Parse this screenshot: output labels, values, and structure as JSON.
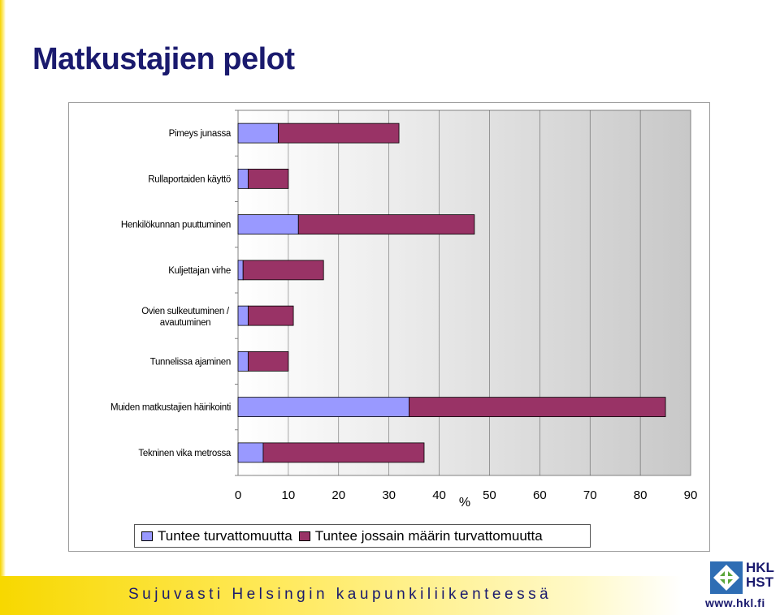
{
  "page": {
    "title": "Matkustajien pelot"
  },
  "footer": {
    "slogan": "Sujuvasti Helsingin kaupunkiliikenteessä"
  },
  "logo": {
    "line1": "HKL",
    "line2": "HST",
    "url": "www.hkl.fi"
  },
  "colors": {
    "series1": "#9999ff",
    "series2": "#993366",
    "title": "#1a1a6e",
    "accent": "#f6d400"
  },
  "chart_data": {
    "type": "bar",
    "orientation": "horizontal",
    "stacked": true,
    "categories": [
      "Pimeys junassa",
      "Rullaportaiden käyttö",
      "Henkilökunnan puuttuminen",
      "Kuljettajan virhe",
      "Ovien sulkeutuminen / avautuminen",
      "Tunnelissa ajaminen",
      "Muiden matkustajien häirikointi",
      "Tekninen vika metrossa"
    ],
    "series": [
      {
        "name": "Tuntee turvattomuutta",
        "values": [
          8,
          2,
          12,
          1,
          2,
          2,
          34,
          5
        ]
      },
      {
        "name": "Tuntee jossain määrin turvattomuutta",
        "values": [
          24,
          8,
          35,
          16,
          9,
          8,
          51,
          32
        ]
      }
    ],
    "xlabel": "%",
    "xlim": [
      0,
      90
    ],
    "xticks": [
      0,
      10,
      20,
      30,
      40,
      50,
      60,
      70,
      80,
      90
    ],
    "grid": true,
    "legend": "bottom"
  }
}
